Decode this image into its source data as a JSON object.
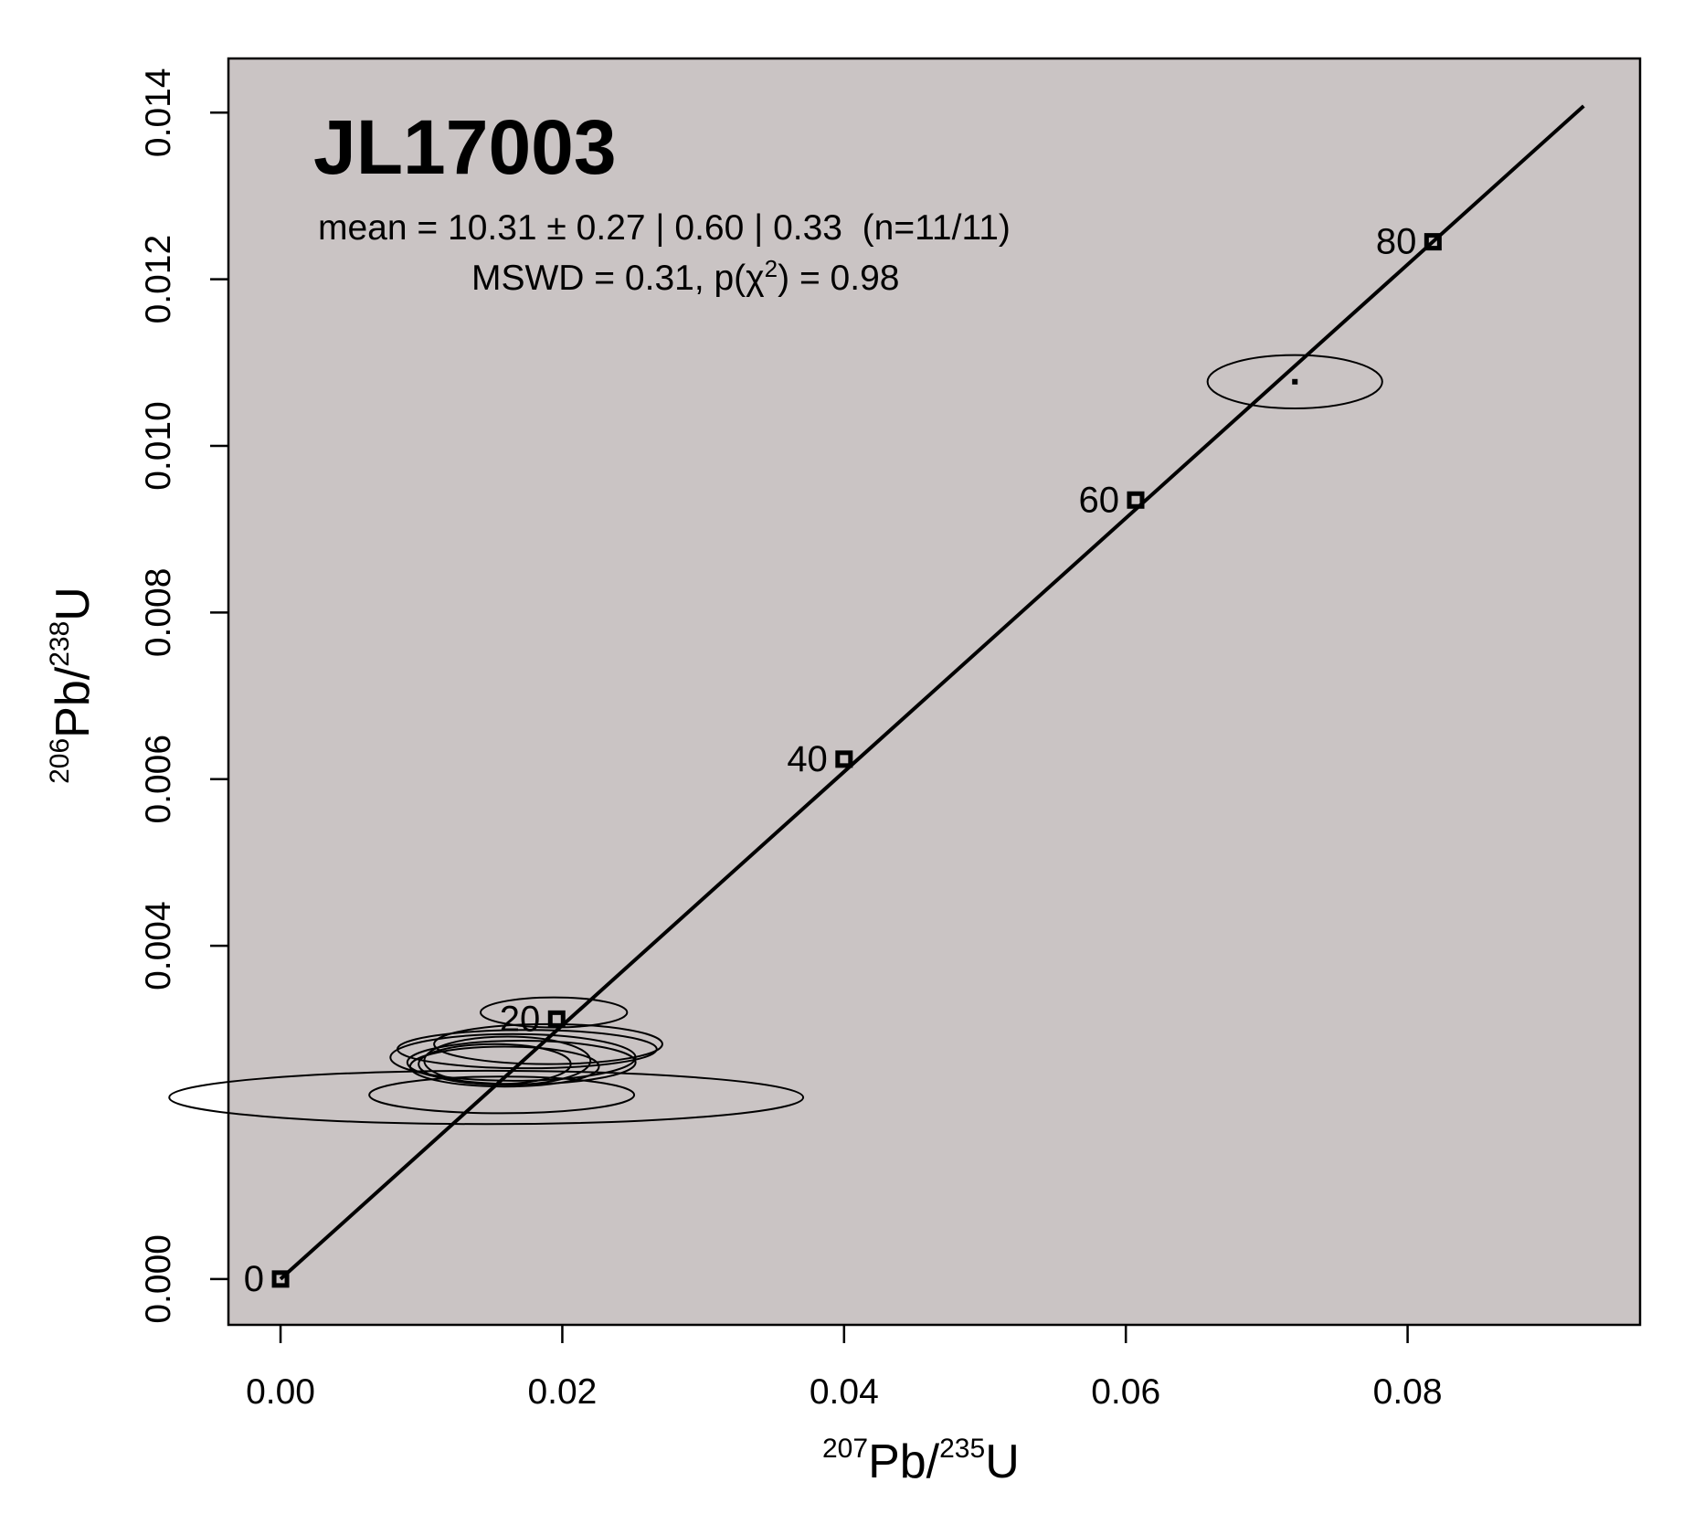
{
  "chart_data": {
    "type": "scatter",
    "subtype": "concordia-diagram",
    "title": "JL17003",
    "annotation_line1": "mean = 10.31 ± 0.27 | 0.60 | 0.33  (n=11/11)",
    "annotation_line2_prefix": "MSWD = 0.31, p(χ",
    "annotation_line2_exp": "2",
    "annotation_line2_suffix": ") = 0.98",
    "xlabel": {
      "sup1": "207",
      "mid": "Pb/",
      "sup2": "235",
      "end": "U"
    },
    "ylabel": {
      "sup1": "206",
      "mid": "Pb/",
      "sup2": "238",
      "end": "U"
    },
    "xlim": [
      -0.0037,
      0.0965
    ],
    "ylim": [
      -0.00055,
      0.01465
    ],
    "x_ticks": [
      0.0,
      0.02,
      0.04,
      0.06,
      0.08
    ],
    "x_tick_labels": [
      "0.00",
      "0.02",
      "0.04",
      "0.06",
      "0.08"
    ],
    "y_ticks": [
      0.0,
      0.004,
      0.006,
      0.008,
      0.01,
      0.012,
      0.014
    ],
    "y_tick_labels": [
      "0.000",
      "0.004",
      "0.006",
      "0.008",
      "0.010",
      "0.012",
      "0.014"
    ],
    "background_color": "#cac4c4",
    "line_color": "#000000",
    "concordia_line": {
      "x": [
        0.0,
        0.0925
      ],
      "y": [
        0.0,
        0.01408
      ]
    },
    "age_markers": [
      {
        "age": "0",
        "x": 0.0,
        "y": 0.0
      },
      {
        "age": "20",
        "x": 0.0196,
        "y": 0.00312
      },
      {
        "age": "40",
        "x": 0.04,
        "y": 0.00624
      },
      {
        "age": "60",
        "x": 0.0607,
        "y": 0.00935
      },
      {
        "age": "80",
        "x": 0.0818,
        "y": 0.01245
      }
    ],
    "ellipses": [
      {
        "cx": 0.0146,
        "cy": 0.00218,
        "rx": 0.0225,
        "ry": 0.00032
      },
      {
        "cx": 0.0157,
        "cy": 0.00221,
        "rx": 0.0094,
        "ry": 0.00022
      },
      {
        "cx": 0.0194,
        "cy": 0.0032,
        "rx": 0.0052,
        "ry": 0.00018
      },
      {
        "cx": 0.019,
        "cy": 0.00282,
        "rx": 0.0081,
        "ry": 0.00024
      },
      {
        "cx": 0.0175,
        "cy": 0.00276,
        "rx": 0.0092,
        "ry": 0.00023
      },
      {
        "cx": 0.0165,
        "cy": 0.00266,
        "rx": 0.0087,
        "ry": 0.00028
      },
      {
        "cx": 0.0171,
        "cy": 0.0026,
        "rx": 0.0081,
        "ry": 0.00026
      },
      {
        "cx": 0.0159,
        "cy": 0.00255,
        "rx": 0.0067,
        "ry": 0.00024
      },
      {
        "cx": 0.0161,
        "cy": 0.00262,
        "rx": 0.0059,
        "ry": 0.00029
      },
      {
        "cx": 0.0152,
        "cy": 0.00258,
        "rx": 0.0054,
        "ry": 0.00024
      },
      {
        "cx": 0.072,
        "cy": 0.01077,
        "rx": 0.0062,
        "ry": 0.00032
      }
    ],
    "point_dot": {
      "x": 0.072,
      "y": 0.01077
    },
    "grid": false,
    "legend": "none"
  }
}
